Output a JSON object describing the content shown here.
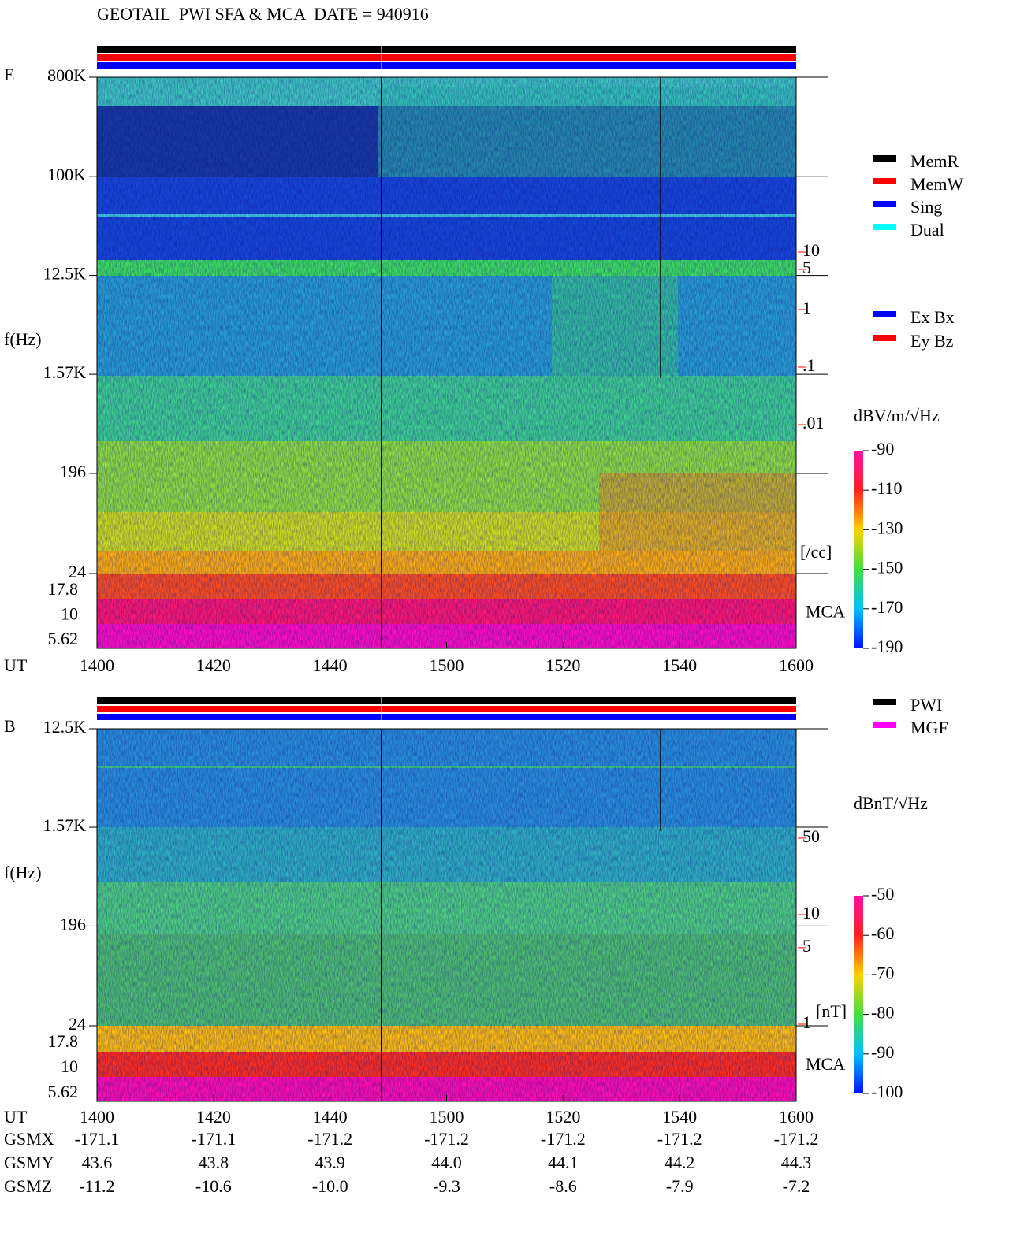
{
  "chart_data": [
    {
      "type": "spectrogram",
      "panel": "E",
      "title": "GEOTAIL  PWI SFA & MCA  DATE = 940916",
      "ylabel": "f(Hz)",
      "xlabel": "UT",
      "log_y": true,
      "ylim": [
        24,
        800000
      ],
      "yticks": [
        {
          "value": 800000,
          "label": "800K"
        },
        {
          "value": 100000,
          "label": "100K"
        },
        {
          "value": 12500,
          "label": "12.5K"
        },
        {
          "value": 1570,
          "label": "1.57K"
        },
        196,
        24
      ],
      "mca_channels": [
        17.8,
        10,
        5.62
      ],
      "mca_label": "MCA",
      "xlim": [
        840,
        960
      ],
      "xticks": [
        {
          "value": 840,
          "label": "1400"
        },
        {
          "value": 860,
          "label": "1420"
        },
        {
          "value": 880,
          "label": "1440"
        },
        {
          "value": 900,
          "label": "1500"
        },
        {
          "value": 920,
          "label": "1520"
        },
        {
          "value": 940,
          "label": "1540"
        },
        {
          "value": 960,
          "label": "1600"
        }
      ],
      "legend": [
        {
          "name": "MemR",
          "color": "#000000"
        },
        {
          "name": "MemW",
          "color": "#ff0000"
        },
        {
          "name": "Sing",
          "color": "#0000ff"
        },
        {
          "name": "Dual",
          "color": "#00ffff"
        }
      ],
      "legend2": [
        {
          "name": "Ex Bx",
          "color": "#0000ff"
        },
        {
          "name": "Ey Bz",
          "color": "#ff0000"
        }
      ],
      "colorbar": {
        "label": "dBV/m/√Hz",
        "lim": [
          -190,
          -90
        ],
        "ticks": [
          -90,
          -110,
          -130,
          -150,
          -170,
          -190
        ]
      },
      "density": {
        "label": "[/cc]",
        "color": "#ff0000",
        "lim": [
          0.001,
          100
        ],
        "ticks": [
          10,
          5,
          1,
          {
            "value": 0.1,
            "label": ".1"
          },
          {
            "value": 0.01,
            "label": ".01"
          }
        ]
      }
    },
    {
      "type": "spectrogram",
      "panel": "B",
      "ylabel": "f(Hz)",
      "xlabel": "UT",
      "log_y": true,
      "ylim": [
        24,
        12500
      ],
      "yticks": [
        {
          "value": 12500,
          "label": "12.5K"
        },
        {
          "value": 1570,
          "label": "1.57K"
        },
        196,
        24
      ],
      "mca_channels": [
        17.8,
        10,
        5.62
      ],
      "mca_label": "MCA",
      "xlim": [
        840,
        960
      ],
      "xticks": [
        {
          "value": 840,
          "label": "1400"
        },
        {
          "value": 860,
          "label": "1420"
        },
        {
          "value": 880,
          "label": "1440"
        },
        {
          "value": 900,
          "label": "1500"
        },
        {
          "value": 920,
          "label": "1520"
        },
        {
          "value": 940,
          "label": "1540"
        },
        {
          "value": 960,
          "label": "1600"
        }
      ],
      "legend": [
        {
          "name": "PWI",
          "color": "#000000"
        },
        {
          "name": "MGF",
          "color": "#ff00ff"
        }
      ],
      "colorbar": {
        "label": "dBnT/√Hz",
        "lim": [
          -100,
          -50
        ],
        "ticks": [
          -50,
          -60,
          -70,
          -80,
          -90,
          -100
        ]
      },
      "density": {
        "label": "[nT]",
        "color": "#ff0000",
        "lim": [
          1,
          100
        ],
        "ticks": [
          50,
          10,
          5,
          1
        ]
      },
      "orbit": [
        {
          "name": "GSMX",
          "values": [
            "-171.1",
            "-171.1",
            "-171.2",
            "-171.2",
            "-171.2",
            "-171.2",
            "-171.2"
          ]
        },
        {
          "name": "GSMY",
          "values": [
            "43.6",
            "43.8",
            "43.9",
            "44.0",
            "44.1",
            "44.2",
            "44.3"
          ]
        },
        {
          "name": "GSMZ",
          "values": [
            "-11.2",
            "-10.6",
            "-10.0",
            "-9.3",
            "-8.6",
            "-7.9",
            "-7.2"
          ]
        }
      ]
    }
  ]
}
